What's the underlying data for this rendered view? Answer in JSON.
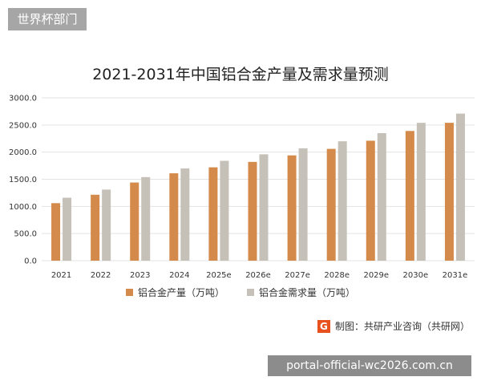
{
  "top_tag": "世界杯部门",
  "watermark_text": "portal-official-wc2026.com.cn",
  "credit": {
    "logo_letter": "G",
    "text": "制图：共研产业咨询（共研网）"
  },
  "colors": {
    "production": "#d48a4a",
    "demand": "#c6c1b8",
    "grid": "#e3e3e3"
  },
  "chart_data": {
    "type": "bar",
    "title": "2021-2031年中国铝合金产量及需求量预测",
    "categories": [
      "2021",
      "2022",
      "2023",
      "2024",
      "2025e",
      "2026e",
      "2027e",
      "2028e",
      "2029e",
      "2030e",
      "2031e"
    ],
    "series": [
      {
        "name": "铝合金产量（万吨）",
        "values": [
          1060,
          1215,
          1440,
          1610,
          1720,
          1820,
          1940,
          2060,
          2210,
          2390,
          2540
        ]
      },
      {
        "name": "铝合金需求量（万吨）",
        "values": [
          1160,
          1310,
          1540,
          1700,
          1840,
          1960,
          2070,
          2200,
          2350,
          2540,
          2710
        ]
      }
    ],
    "yticks": [
      "0.0",
      "500.0",
      "1000.0",
      "1500.0",
      "2000.0",
      "2500.0",
      "3000.0"
    ],
    "ylim": [
      0,
      3000
    ],
    "grid": true,
    "legend_position": "bottom"
  }
}
